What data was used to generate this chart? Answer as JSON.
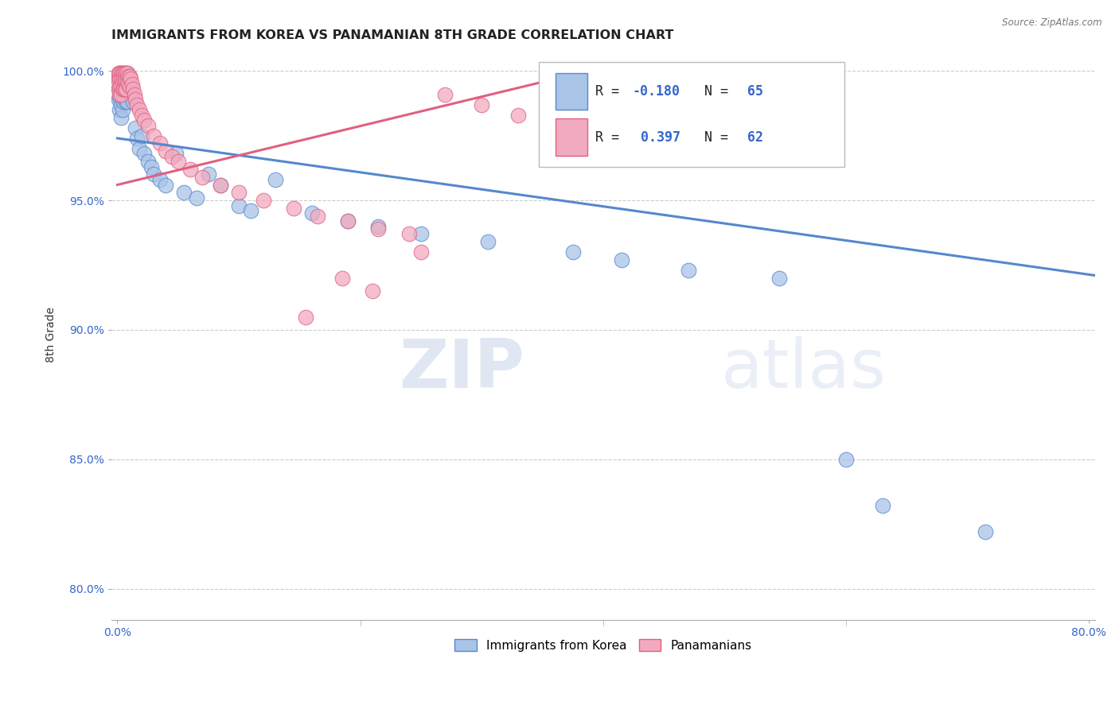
{
  "title": "IMMIGRANTS FROM KOREA VS PANAMANIAN 8TH GRADE CORRELATION CHART",
  "source_text": "Source: ZipAtlas.com",
  "ylabel": "8th Grade",
  "watermark_zip": "ZIP",
  "watermark_atlas": "atlas",
  "xlim": [
    -0.005,
    0.805
  ],
  "ylim": [
    0.788,
    1.008
  ],
  "xtick_vals": [
    0.0,
    0.8
  ],
  "xtick_labels": [
    "0.0%",
    "80.0%"
  ],
  "ytick_vals": [
    0.8,
    0.85,
    0.9,
    0.95,
    1.0
  ],
  "ytick_labels": [
    "80.0%",
    "85.0%",
    "90.0%",
    "95.0%",
    "100.0%"
  ],
  "blue_R": "-0.180",
  "blue_N": "65",
  "pink_R": "0.397",
  "pink_N": "62",
  "blue_color": "#5588cc",
  "pink_color": "#e06080",
  "blue_fill": "#aac4e8",
  "pink_fill": "#f2aabf",
  "grid_color": "#cccccc",
  "background_color": "#ffffff",
  "title_fontsize": 11.5,
  "tick_fontsize": 10,
  "legend_fontsize": 12,
  "blue_line_x0": 0.0,
  "blue_line_x1": 0.805,
  "blue_line_y0": 0.974,
  "blue_line_y1": 0.921,
  "pink_line_x0": 0.0,
  "pink_line_x1": 0.37,
  "pink_line_y0": 0.956,
  "pink_line_y1": 0.998,
  "blue_scatter_x": [
    0.001,
    0.001,
    0.001,
    0.002,
    0.002,
    0.002,
    0.002,
    0.003,
    0.003,
    0.003,
    0.003,
    0.003,
    0.004,
    0.004,
    0.004,
    0.004,
    0.005,
    0.005,
    0.005,
    0.006,
    0.006,
    0.006,
    0.007,
    0.007,
    0.007,
    0.008,
    0.008,
    0.008,
    0.009,
    0.009,
    0.01,
    0.01,
    0.011,
    0.012,
    0.013,
    0.015,
    0.016,
    0.018,
    0.02,
    0.022,
    0.025,
    0.028,
    0.03,
    0.035,
    0.04,
    0.048,
    0.055,
    0.065,
    0.075,
    0.085,
    0.1,
    0.11,
    0.13,
    0.16,
    0.19,
    0.215,
    0.25,
    0.305,
    0.375,
    0.415,
    0.47,
    0.545,
    0.6,
    0.715,
    0.63
  ],
  "blue_scatter_y": [
    0.997,
    0.993,
    0.989,
    0.999,
    0.994,
    0.99,
    0.985,
    0.999,
    0.996,
    0.992,
    0.987,
    0.982,
    0.998,
    0.994,
    0.99,
    0.985,
    0.997,
    0.993,
    0.988,
    0.999,
    0.995,
    0.989,
    0.998,
    0.993,
    0.988,
    0.999,
    0.994,
    0.988,
    0.997,
    0.992,
    0.997,
    0.991,
    0.994,
    0.99,
    0.988,
    0.978,
    0.974,
    0.97,
    0.975,
    0.968,
    0.965,
    0.963,
    0.96,
    0.958,
    0.956,
    0.968,
    0.953,
    0.951,
    0.96,
    0.956,
    0.948,
    0.946,
    0.958,
    0.945,
    0.942,
    0.94,
    0.937,
    0.934,
    0.93,
    0.927,
    0.923,
    0.92,
    0.85,
    0.822,
    0.832
  ],
  "pink_scatter_x": [
    0.001,
    0.001,
    0.001,
    0.002,
    0.002,
    0.002,
    0.002,
    0.003,
    0.003,
    0.003,
    0.003,
    0.004,
    0.004,
    0.004,
    0.005,
    0.005,
    0.005,
    0.006,
    0.006,
    0.006,
    0.007,
    0.007,
    0.007,
    0.008,
    0.008,
    0.009,
    0.009,
    0.01,
    0.01,
    0.011,
    0.012,
    0.013,
    0.014,
    0.015,
    0.016,
    0.018,
    0.02,
    0.022,
    0.025,
    0.03,
    0.035,
    0.04,
    0.045,
    0.05,
    0.06,
    0.07,
    0.085,
    0.1,
    0.12,
    0.145,
    0.165,
    0.19,
    0.215,
    0.24,
    0.27,
    0.3,
    0.33,
    0.36,
    0.155,
    0.185,
    0.21,
    0.25
  ],
  "pink_scatter_y": [
    0.999,
    0.996,
    0.993,
    0.999,
    0.997,
    0.994,
    0.991,
    0.999,
    0.997,
    0.994,
    0.991,
    0.999,
    0.996,
    0.993,
    0.999,
    0.997,
    0.993,
    0.999,
    0.997,
    0.993,
    0.999,
    0.996,
    0.993,
    0.999,
    0.996,
    0.998,
    0.995,
    0.998,
    0.994,
    0.997,
    0.995,
    0.993,
    0.991,
    0.989,
    0.987,
    0.985,
    0.983,
    0.981,
    0.979,
    0.975,
    0.972,
    0.969,
    0.967,
    0.965,
    0.962,
    0.959,
    0.956,
    0.953,
    0.95,
    0.947,
    0.944,
    0.942,
    0.939,
    0.937,
    0.991,
    0.987,
    0.983,
    0.979,
    0.905,
    0.92,
    0.915,
    0.93
  ]
}
